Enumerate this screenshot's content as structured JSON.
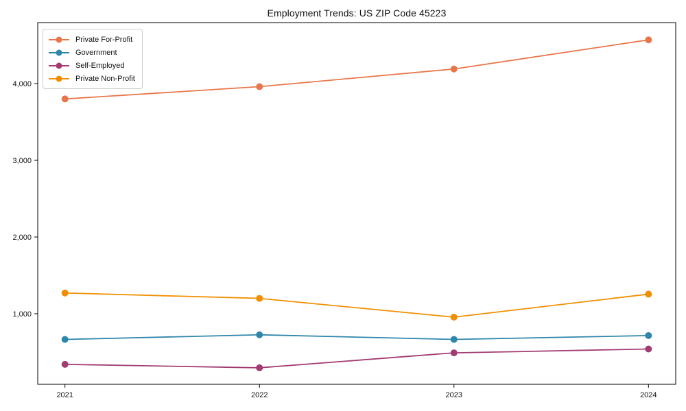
{
  "chart_data": {
    "type": "line",
    "title": "Employment Trends: US ZIP Code 45223",
    "x": [
      2021,
      2022,
      2023,
      2024
    ],
    "x_tick_labels": [
      "2021",
      "2022",
      "2023",
      "2024"
    ],
    "y_tick_labels": [
      "1,000",
      "2,000",
      "3,000",
      "4,000"
    ],
    "yticks": [
      1000,
      2000,
      3000,
      4000
    ],
    "ylim": [
      80,
      4795
    ],
    "xlim": [
      2020.86,
      2024.14
    ],
    "grid": false,
    "legend_position": "upper-left",
    "axis_color": "#000000",
    "background_color": "#ffffff",
    "series": [
      {
        "name": "Private For-Profit",
        "color": "#E8764B",
        "values": [
          3800,
          3960,
          4190,
          4570
        ]
      },
      {
        "name": "Government",
        "color": "#2E86AB",
        "values": [
          665,
          725,
          665,
          715
        ]
      },
      {
        "name": "Self-Employed",
        "color": "#A23B72",
        "values": [
          340,
          295,
          490,
          540
        ]
      },
      {
        "name": "Private Non-Profit",
        "color": "#F18F01",
        "values": [
          1270,
          1200,
          955,
          1255
        ]
      }
    ]
  }
}
